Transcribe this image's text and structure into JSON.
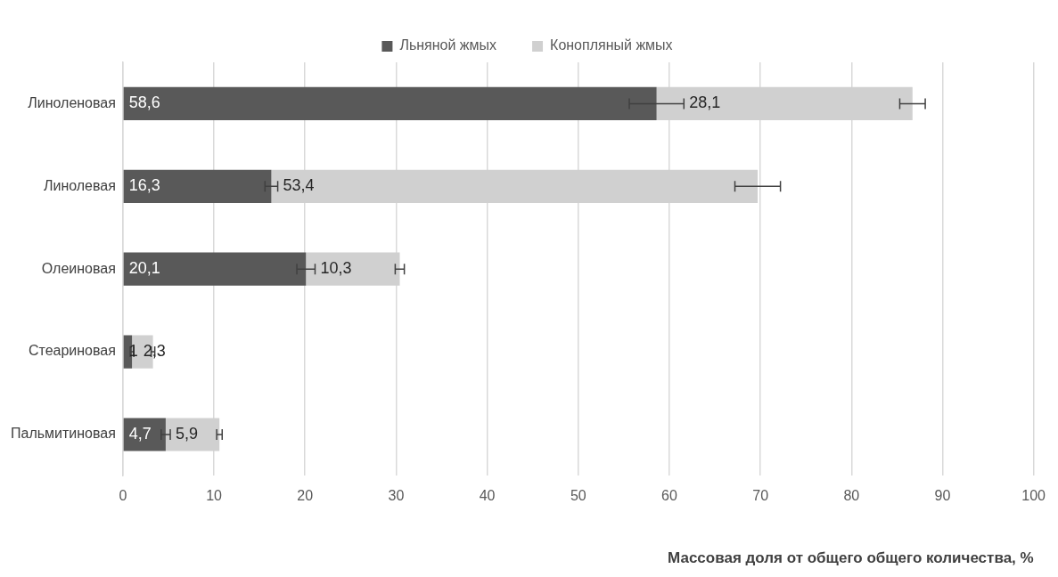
{
  "chart_data": {
    "type": "bar",
    "orientation": "horizontal",
    "stacked": true,
    "categories": [
      "Линоленовая",
      "Линолевая",
      "Олеиновая",
      "Стеариновая",
      "Пальмитиновая"
    ],
    "series": [
      {
        "name": "Льняной жмых",
        "color": "#595959",
        "values": [
          58.6,
          16.3,
          20.1,
          1,
          4.7
        ],
        "errors": [
          3,
          0.7,
          1,
          0.2,
          0.5
        ],
        "value_labels": [
          "58,6",
          "16,3",
          "20,1",
          "1",
          "4,7"
        ]
      },
      {
        "name": "Конопляный жмых",
        "color": "#d0d0d0",
        "values": [
          28.1,
          53.4,
          10.3,
          2.3,
          5.9
        ],
        "errors": [
          1.4,
          2.5,
          0.5,
          0.2,
          0.3
        ],
        "value_labels": [
          "28,1",
          "53,4",
          "10,3",
          "2,3",
          "5,9"
        ]
      }
    ],
    "xlim": [
      0,
      100
    ],
    "xticks": [
      0,
      10,
      20,
      30,
      40,
      50,
      60,
      70,
      80,
      90,
      100
    ],
    "xlabel": "Массовая доля от общего общего количества, %",
    "grid": "x",
    "legend": "top"
  }
}
